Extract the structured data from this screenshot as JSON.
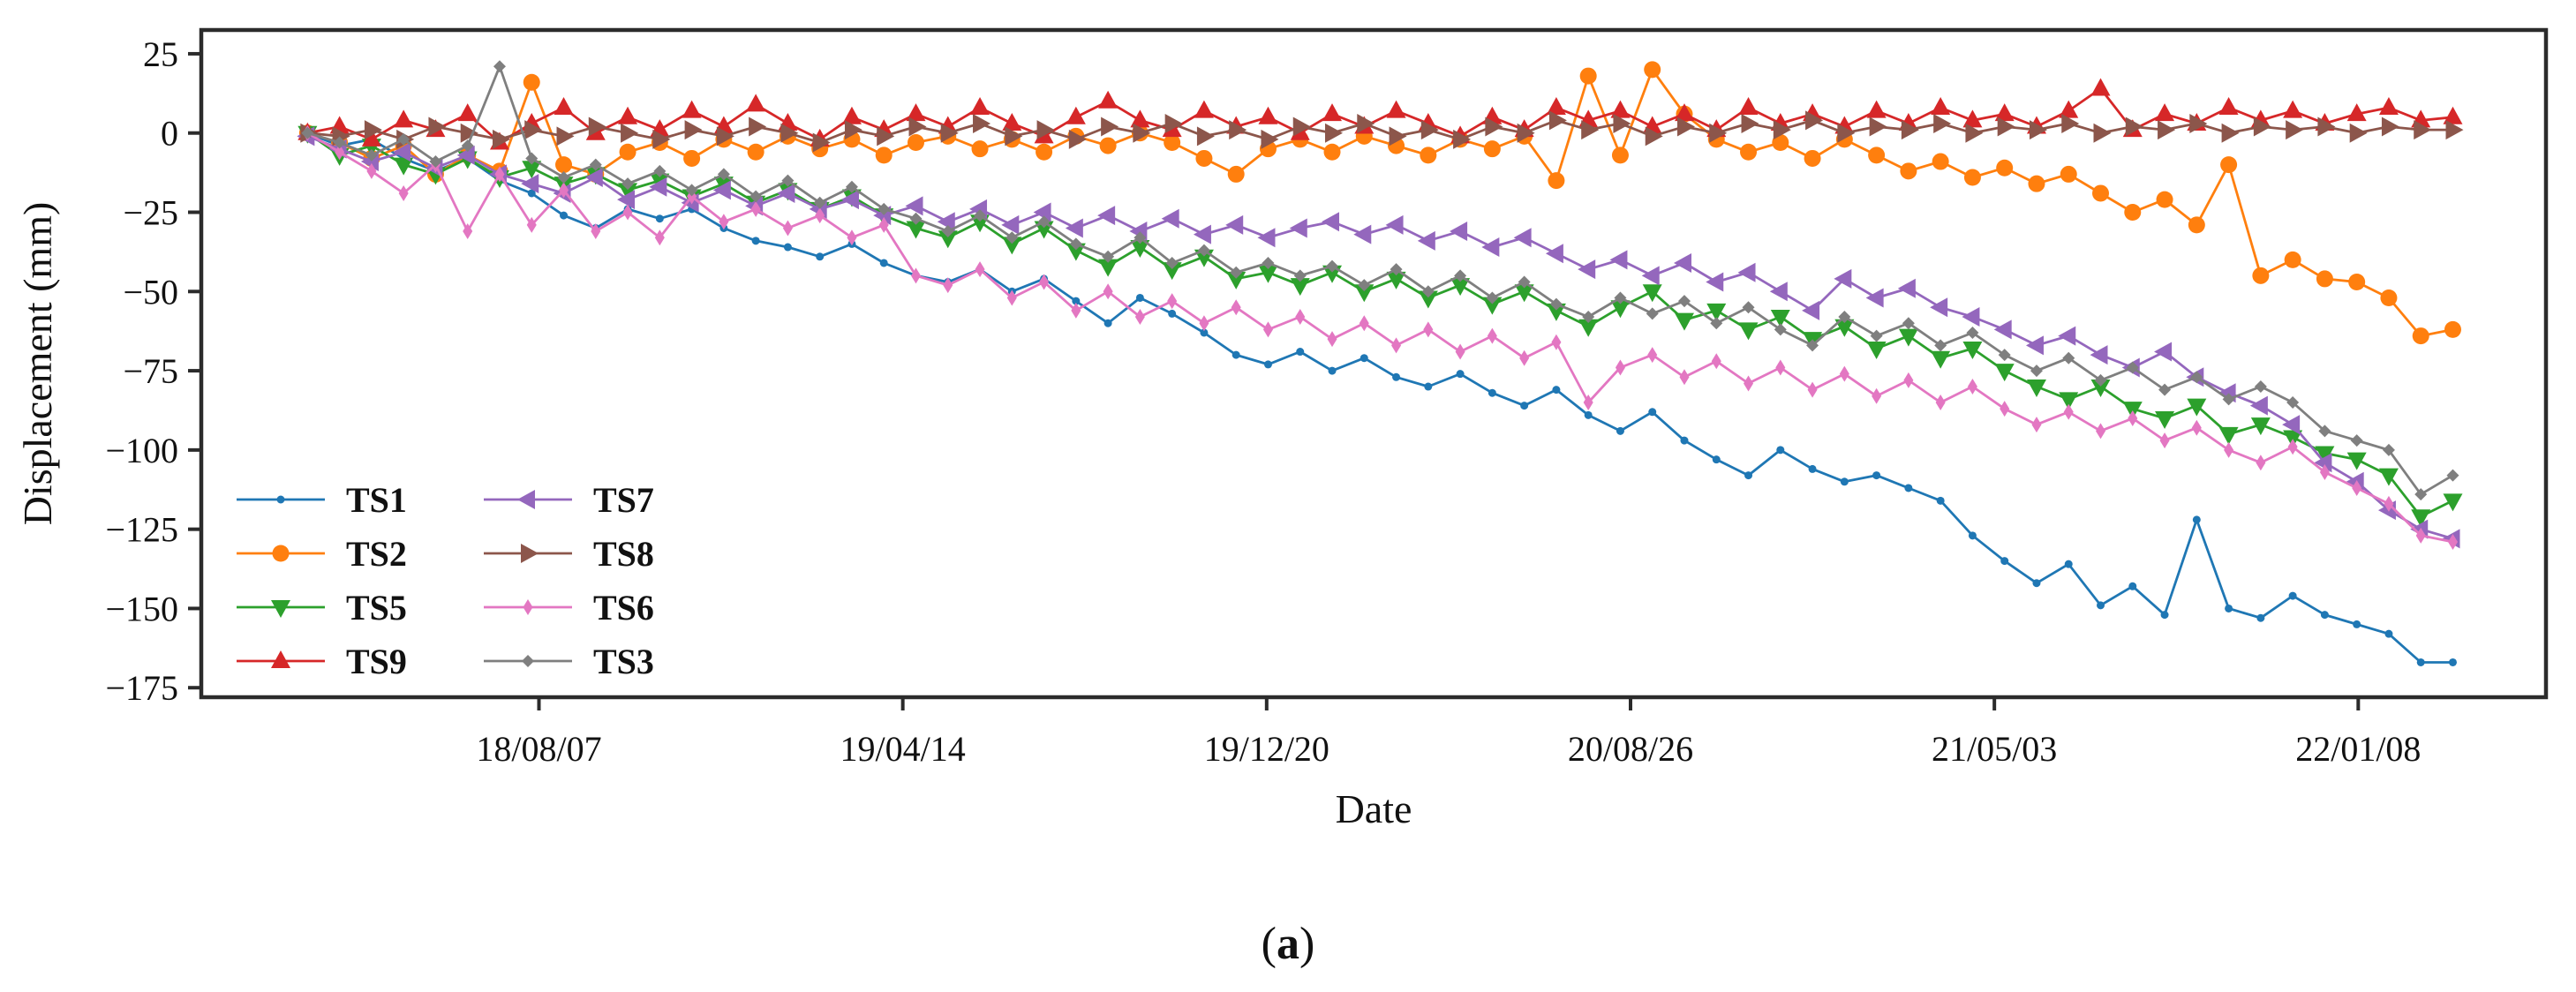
{
  "figure": {
    "ylabel": "Displacement (mm)",
    "xlabel": "Date",
    "caption": "(a)",
    "caption_open": "(",
    "caption_letter": "a",
    "caption_close": ")"
  },
  "chart_data": {
    "type": "line",
    "title": "",
    "xlabel": "Date",
    "ylabel": "Displacement (mm)",
    "grid": false,
    "background": "#ffffff",
    "spine_color": "#2b2b2b",
    "ylim": [
      -178,
      32.5
    ],
    "xlim_days": [
      -73,
      1538
    ],
    "y_ticks": [
      {
        "v": 25,
        "label": "25"
      },
      {
        "v": 0,
        "label": "0"
      },
      {
        "v": -25,
        "label": "−25"
      },
      {
        "v": -50,
        "label": "−50"
      },
      {
        "v": -75,
        "label": "−75"
      },
      {
        "v": -100,
        "label": "−100"
      },
      {
        "v": -125,
        "label": "−125"
      },
      {
        "v": -150,
        "label": "−150"
      },
      {
        "v": -175,
        "label": "−175"
      }
    ],
    "x_ticks": [
      {
        "day": 159,
        "label": "18/08/07"
      },
      {
        "day": 409,
        "label": "19/04/14"
      },
      {
        "day": 659,
        "label": "19/12/20"
      },
      {
        "day": 909,
        "label": "20/08/26"
      },
      {
        "day": 1159,
        "label": "21/05/03"
      },
      {
        "day": 1409,
        "label": "22/01/08"
      }
    ],
    "x_days": [
      0,
      22,
      44,
      66,
      88,
      110,
      132,
      154,
      176,
      198,
      220,
      242,
      264,
      286,
      308,
      330,
      352,
      374,
      396,
      418,
      440,
      462,
      484,
      506,
      528,
      550,
      572,
      594,
      616,
      638,
      660,
      682,
      704,
      726,
      748,
      770,
      792,
      814,
      836,
      858,
      880,
      902,
      924,
      946,
      968,
      990,
      1012,
      1034,
      1056,
      1078,
      1100,
      1122,
      1144,
      1166,
      1188,
      1210,
      1232,
      1254,
      1276,
      1298,
      1320,
      1342,
      1364,
      1386,
      1408,
      1430,
      1452,
      1474
    ],
    "series": [
      {
        "name": "TS1",
        "color": "#1f77b4",
        "marker": "dot",
        "values": [
          0,
          -4,
          -2,
          -8,
          -12,
          -8,
          -15,
          -19,
          -26,
          -30,
          -24,
          -27,
          -24,
          -30,
          -34,
          -36,
          -39,
          -35,
          -41,
          -45,
          -47,
          -43,
          -50,
          -46,
          -53,
          -60,
          -52,
          -57,
          -63,
          -70,
          -73,
          -69,
          -75,
          -71,
          -77,
          -80,
          -76,
          -82,
          -86,
          -81,
          -89,
          -94,
          -88,
          -97,
          -103,
          -108,
          -100,
          -106,
          -110,
          -108,
          -112,
          -116,
          -127,
          -135,
          -142,
          -136,
          -149,
          -143,
          -152,
          -122,
          -150,
          -153,
          -146,
          -152,
          -155,
          -158,
          -167,
          -167
        ]
      },
      {
        "name": "TS2",
        "color": "#ff7f0e",
        "marker": "circle",
        "values": [
          0,
          -3,
          -8,
          -4,
          -13,
          -7,
          -12,
          16,
          -10,
          -13,
          -6,
          -3,
          -8,
          -2,
          -6,
          -1,
          -5,
          -2,
          -7,
          -3,
          -1,
          -5,
          -2,
          -6,
          -1,
          -4,
          0,
          -3,
          -8,
          -13,
          -5,
          -2,
          -6,
          -1,
          -4,
          -7,
          -2,
          -5,
          -1,
          -15,
          18,
          -7,
          20,
          6,
          -2,
          -6,
          -3,
          -8,
          -2,
          -7,
          -12,
          -9,
          -14,
          -11,
          -16,
          -13,
          -19,
          -25,
          -21,
          -29,
          -10,
          -45,
          -40,
          -46,
          -47,
          -52,
          -64,
          -62
        ]
      },
      {
        "name": "TS5",
        "color": "#2ca02c",
        "marker": "triangle-down",
        "values": [
          0,
          -7,
          -4,
          -10,
          -13,
          -8,
          -14,
          -11,
          -16,
          -13,
          -18,
          -15,
          -20,
          -16,
          -22,
          -18,
          -24,
          -20,
          -26,
          -30,
          -33,
          -28,
          -35,
          -30,
          -37,
          -42,
          -36,
          -43,
          -39,
          -46,
          -44,
          -48,
          -44,
          -50,
          -46,
          -52,
          -48,
          -54,
          -50,
          -56,
          -61,
          -55,
          -50,
          -59,
          -56,
          -62,
          -58,
          -65,
          -61,
          -68,
          -64,
          -71,
          -68,
          -75,
          -80,
          -84,
          -80,
          -87,
          -90,
          -86,
          -95,
          -92,
          -96,
          -101,
          -103,
          -108,
          -121,
          -116
        ]
      },
      {
        "name": "TS9",
        "color": "#d62728",
        "marker": "triangle-up",
        "values": [
          0,
          2,
          -2,
          4,
          1,
          6,
          -3,
          3,
          8,
          0,
          5,
          1,
          7,
          2,
          9,
          3,
          -2,
          5,
          1,
          6,
          2,
          8,
          3,
          -1,
          5,
          10,
          4,
          1,
          7,
          2,
          5,
          0,
          6,
          2,
          7,
          3,
          -1,
          5,
          1,
          8,
          4,
          7,
          2,
          6,
          1,
          8,
          3,
          6,
          2,
          7,
          3,
          8,
          4,
          6,
          2,
          7,
          14,
          1,
          6,
          3,
          8,
          4,
          7,
          3,
          6,
          8,
          4,
          5
        ]
      },
      {
        "name": "TS7",
        "color": "#9467bd",
        "marker": "triangle-left",
        "values": [
          -1,
          -5,
          -9,
          -6,
          -11,
          -7,
          -13,
          -16,
          -19,
          -14,
          -21,
          -17,
          -22,
          -18,
          -23,
          -19,
          -24,
          -21,
          -26,
          -23,
          -28,
          -24,
          -29,
          -25,
          -30,
          -26,
          -31,
          -27,
          -32,
          -29,
          -33,
          -30,
          -28,
          -32,
          -29,
          -34,
          -31,
          -36,
          -33,
          -38,
          -43,
          -40,
          -45,
          -41,
          -47,
          -44,
          -50,
          -56,
          -46,
          -52,
          -49,
          -55,
          -58,
          -62,
          -67,
          -64,
          -70,
          -74,
          -69,
          -77,
          -82,
          -86,
          -92,
          -104,
          -110,
          -119,
          -125,
          -128
        ]
      },
      {
        "name": "TS8",
        "color": "#8c564b",
        "marker": "triangle-right",
        "values": [
          0,
          -1,
          1,
          -2,
          2,
          0,
          -2,
          1,
          -1,
          2,
          0,
          -2,
          1,
          -1,
          2,
          0,
          -3,
          1,
          -1,
          2,
          0,
          3,
          -1,
          1,
          -2,
          2,
          0,
          3,
          -1,
          1,
          -2,
          2,
          0,
          3,
          -1,
          1,
          -2,
          2,
          0,
          4,
          1,
          3,
          -1,
          2,
          0,
          3,
          1,
          4,
          0,
          2,
          1,
          3,
          0,
          2,
          1,
          3,
          0,
          2,
          1,
          3,
          0,
          2,
          1,
          2,
          0,
          2,
          1,
          1
        ]
      },
      {
        "name": "TS6",
        "color": "#e377c2",
        "marker": "diamond",
        "values": [
          0,
          -6,
          -12,
          -19,
          -10,
          -31,
          -13,
          -29,
          -18,
          -31,
          -25,
          -33,
          -20,
          -28,
          -24,
          -30,
          -26,
          -33,
          -29,
          -45,
          -48,
          -43,
          -52,
          -47,
          -56,
          -50,
          -58,
          -53,
          -60,
          -55,
          -62,
          -58,
          -65,
          -60,
          -67,
          -62,
          -69,
          -64,
          -71,
          -66,
          -85,
          -74,
          -70,
          -77,
          -72,
          -79,
          -74,
          -81,
          -76,
          -83,
          -78,
          -85,
          -80,
          -87,
          -92,
          -88,
          -94,
          -90,
          -97,
          -93,
          -100,
          -104,
          -99,
          -107,
          -112,
          -117,
          -127,
          -129
        ]
      },
      {
        "name": "TS3",
        "color": "#7f7f7f",
        "marker": "diamond-small",
        "values": [
          0,
          -3,
          -7,
          -2,
          -9,
          -4,
          21,
          -8,
          -14,
          -10,
          -16,
          -12,
          -18,
          -13,
          -20,
          -15,
          -22,
          -17,
          -24,
          -27,
          -31,
          -26,
          -33,
          -28,
          -35,
          -39,
          -33,
          -41,
          -37,
          -44,
          -41,
          -45,
          -42,
          -48,
          -43,
          -50,
          -45,
          -52,
          -47,
          -54,
          -58,
          -52,
          -57,
          -53,
          -60,
          -55,
          -62,
          -67,
          -58,
          -64,
          -60,
          -67,
          -63,
          -70,
          -75,
          -71,
          -78,
          -74,
          -81,
          -77,
          -84,
          -80,
          -85,
          -94,
          -97,
          -100,
          -114,
          -108
        ]
      }
    ],
    "legend": {
      "position": "lower-left",
      "frame": false,
      "columns": [
        [
          "TS1",
          "TS2",
          "TS5",
          "TS9"
        ],
        [
          "TS7",
          "TS8",
          "TS6",
          "TS3"
        ]
      ]
    }
  }
}
